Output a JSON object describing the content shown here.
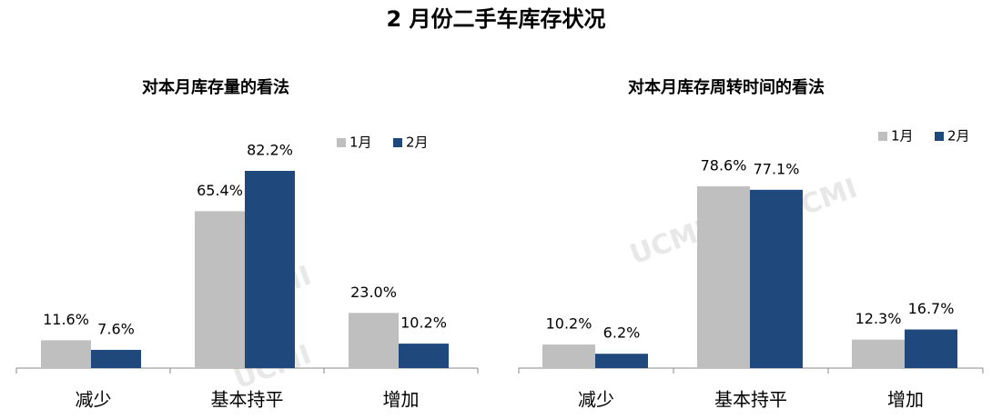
{
  "title": "2 月份二手车库存状况",
  "watermark": "UCMI",
  "chart_data": [
    {
      "type": "bar",
      "title": "对本月库存量的看法",
      "categories": [
        "减少",
        "基本持平",
        "增加"
      ],
      "series": [
        {
          "name": "1月",
          "color": "#bfbfbf",
          "values": [
            11.6,
            65.4,
            23.0
          ],
          "value_labels": [
            "11.6%",
            "65.4%",
            "23.0%"
          ]
        },
        {
          "name": "2月",
          "color": "#1f497d",
          "values": [
            7.6,
            82.2,
            10.2
          ],
          "value_labels": [
            "7.6%",
            "82.2%",
            "10.2%"
          ]
        }
      ]
    },
    {
      "type": "bar",
      "title": "对本月库存周转时间的看法",
      "categories": [
        "减少",
        "基本持平",
        "增加"
      ],
      "series": [
        {
          "name": "1月",
          "color": "#bfbfbf",
          "values": [
            10.2,
            78.6,
            12.3
          ],
          "value_labels": [
            "10.2%",
            "78.6%",
            "12.3%"
          ]
        },
        {
          "name": "2月",
          "color": "#1f497d",
          "values": [
            6.2,
            77.1,
            16.7
          ],
          "value_labels": [
            "6.2%",
            "77.1%",
            "16.7%"
          ]
        }
      ]
    }
  ]
}
